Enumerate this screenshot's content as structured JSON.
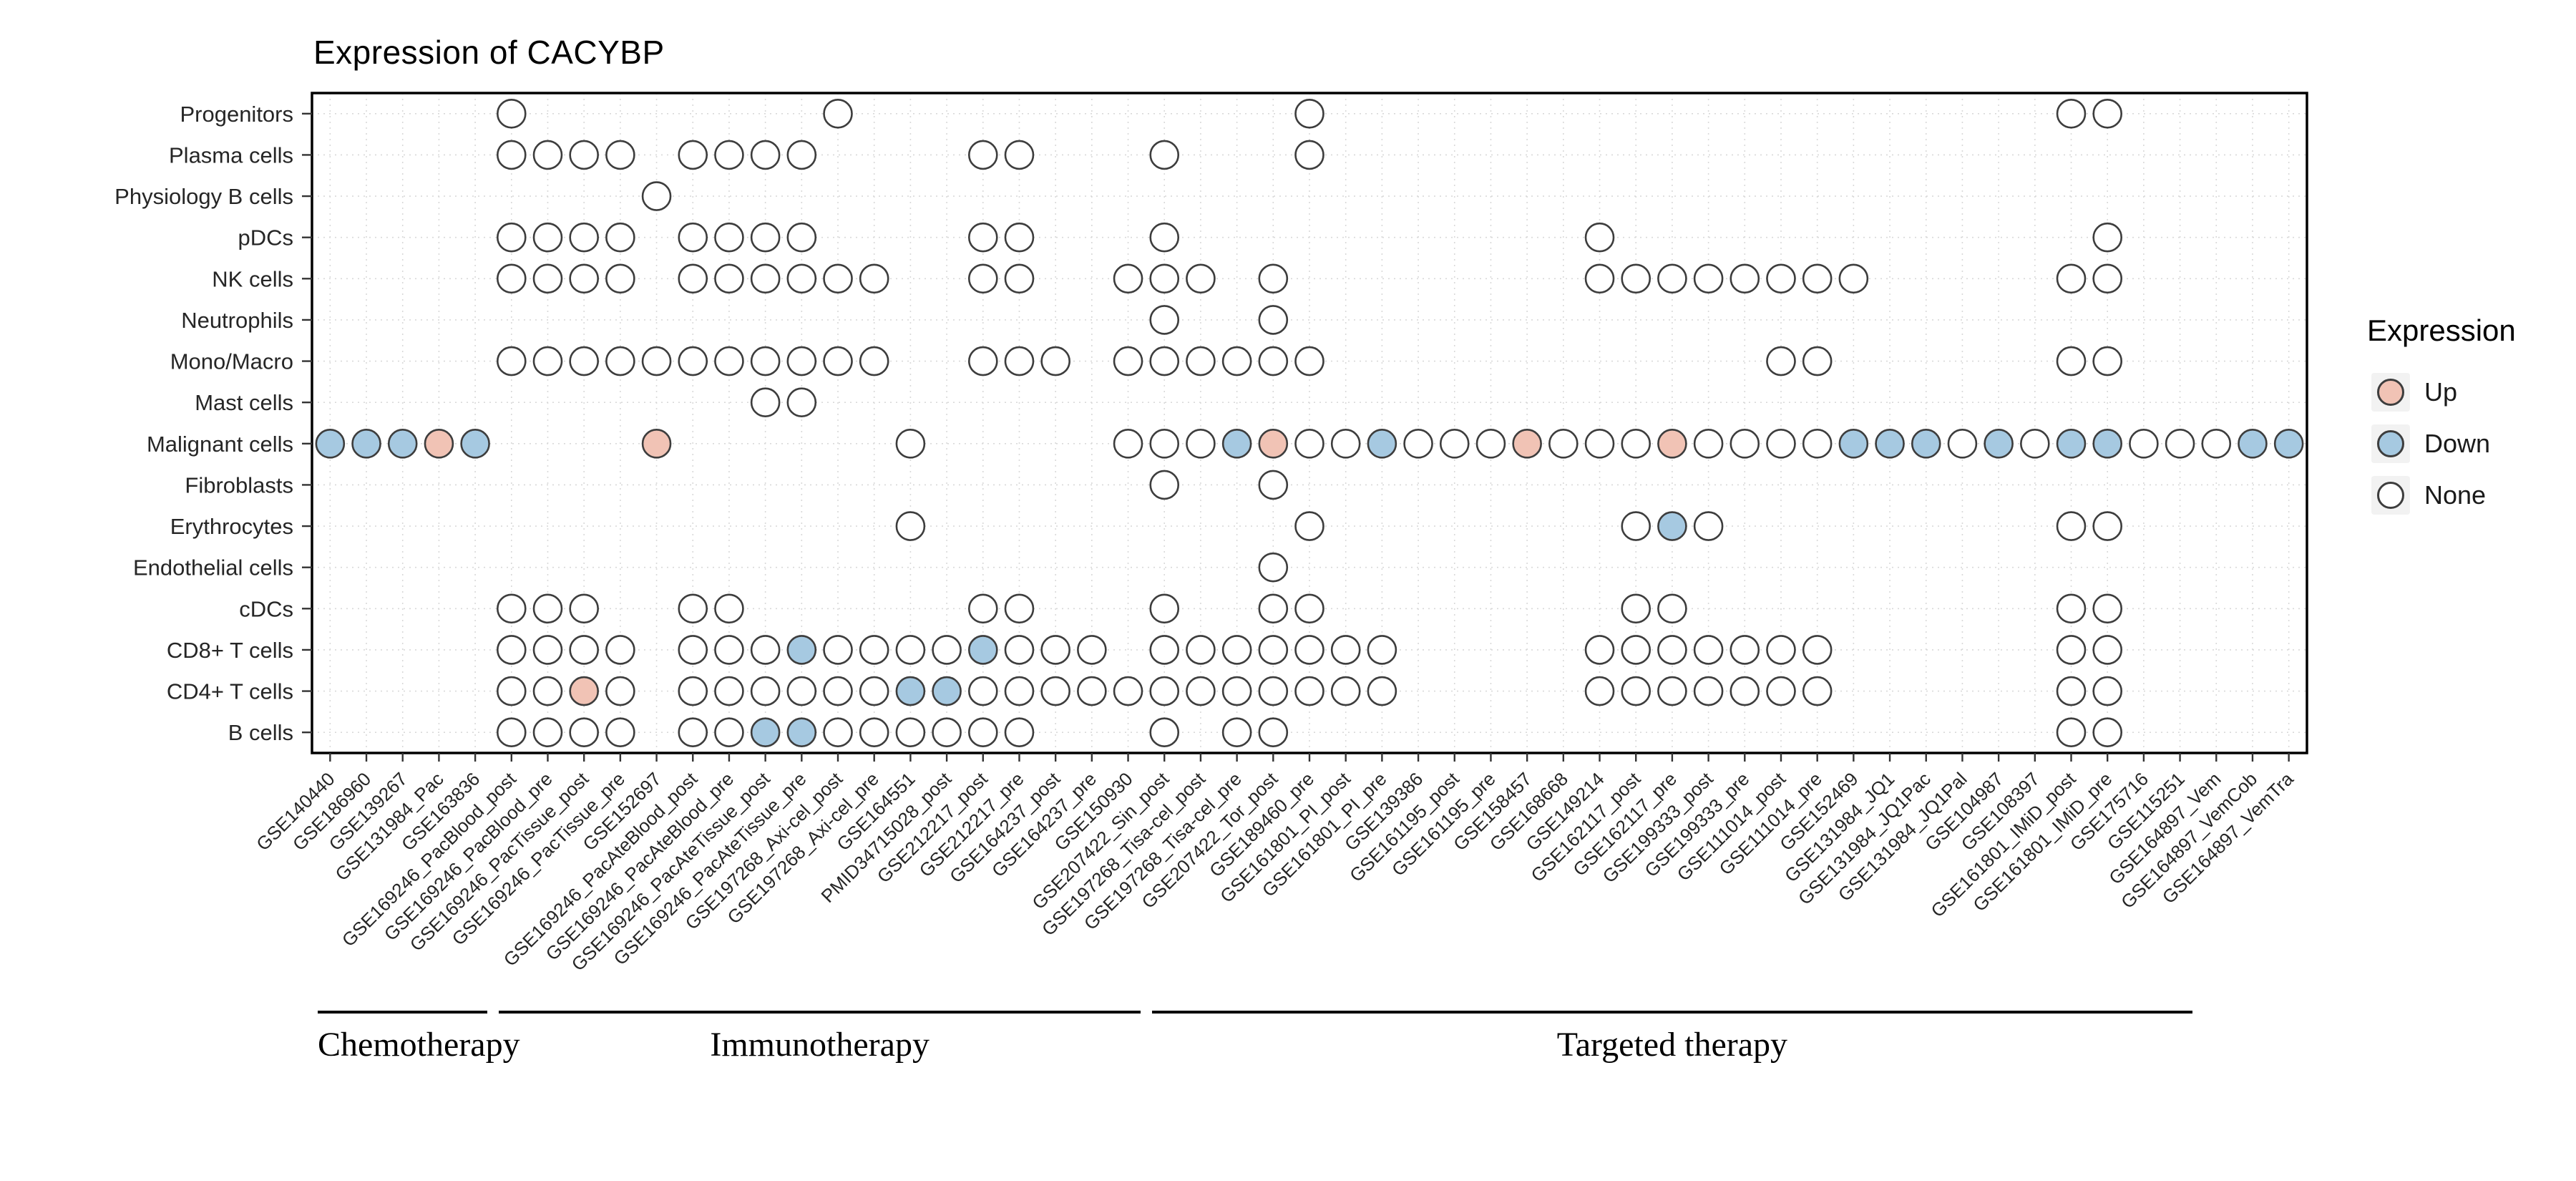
{
  "title": "Expression of CACYBP",
  "legend": {
    "title": "Expression",
    "items": [
      {
        "label": "Up",
        "state": "up"
      },
      {
        "label": "Down",
        "state": "down"
      },
      {
        "label": "None",
        "state": "none"
      }
    ]
  },
  "colors": {
    "up": "#f1c3b5",
    "down": "#a6c9e1",
    "none": "#ffffff",
    "stroke": "#3d3d3d",
    "grid": "#d9d9d9",
    "panel_border": "#000000",
    "axis_text": "#262626"
  },
  "chart_data": {
    "type": "heatmap",
    "title": "Expression of CACYBP",
    "value_levels": [
      "Up",
      "Down",
      "None"
    ],
    "legend_position": "right",
    "rows": [
      "Progenitors",
      "Plasma cells",
      "Physiology B cells",
      "pDCs",
      "NK cells",
      "Neutrophils",
      "Mono/Macro",
      "Mast cells",
      "Malignant cells",
      "Fibroblasts",
      "Erythrocytes",
      "Endothelial cells",
      "cDCs",
      "CD8+ T cells",
      "CD4+ T cells",
      "B cells"
    ],
    "columns": [
      "GSE140440",
      "GSE186960",
      "GSE139267",
      "GSE131984_Pac",
      "GSE163836",
      "GSE169246_PacBlood_post",
      "GSE169246_PacBlood_pre",
      "GSE169246_PacTissue_post",
      "GSE169246_PacTissue_pre",
      "GSE152697",
      "GSE169246_PacAteBlood_post",
      "GSE169246_PacAteBlood_pre",
      "GSE169246_PacAteTissue_post",
      "GSE169246_PacAteTissue_pre",
      "GSE197268_Axi-cel_post",
      "GSE197268_Axi-cel_pre",
      "GSE164551",
      "PMID34715028_post",
      "GSE212217_post",
      "GSE212217_pre",
      "GSE164237_post",
      "GSE164237_pre",
      "GSE150930",
      "GSE207422_Sin_post",
      "GSE197268_Tisa-cel_post",
      "GSE197268_Tisa-cel_pre",
      "GSE207422_Tor_post",
      "GSE189460_pre",
      "GSE161801_PI_post",
      "GSE161801_PI_pre",
      "GSE139386",
      "GSE161195_post",
      "GSE161195_pre",
      "GSE158457",
      "GSE168668",
      "GSE149214",
      "GSE162117_post",
      "GSE162117_pre",
      "GSE199333_post",
      "GSE199333_pre",
      "GSE111014_post",
      "GSE111014_pre",
      "GSE152469",
      "GSE131984_JQ1",
      "GSE131984_JQ1Pac",
      "GSE131984_JQ1Pal",
      "GSE104987",
      "GSE108397",
      "GSE161801_IMiD_post",
      "GSE161801_IMiD_pre",
      "GSE175716",
      "GSE115251",
      "GSE164897_Vem",
      "GSE164897_VemCob",
      "GSE164897_VemTra"
    ],
    "therapy_groups": [
      {
        "label": "Chemotherapy",
        "col_start": 1,
        "col_end": 5
      },
      {
        "label": "Immunotherapy",
        "col_start": 6,
        "col_end": 23
      },
      {
        "label": "Targeted therapy",
        "col_start": 24,
        "col_end": 52
      }
    ],
    "matrix": [
      {
        "row": "Progenitors",
        "none": [
          6,
          15,
          28,
          49,
          50
        ]
      },
      {
        "row": "Plasma cells",
        "none": [
          6,
          7,
          8,
          9,
          11,
          12,
          13,
          14,
          19,
          20,
          24,
          28
        ]
      },
      {
        "row": "Physiology B cells",
        "none": [
          10
        ]
      },
      {
        "row": "pDCs",
        "none": [
          6,
          7,
          8,
          9,
          11,
          12,
          13,
          14,
          19,
          20,
          24,
          36,
          50
        ]
      },
      {
        "row": "NK cells",
        "none": [
          6,
          7,
          8,
          9,
          11,
          12,
          13,
          14,
          15,
          16,
          19,
          20,
          23,
          24,
          25,
          27,
          36,
          37,
          38,
          39,
          40,
          41,
          42,
          43,
          49,
          50
        ]
      },
      {
        "row": "Neutrophils",
        "none": [
          24,
          27
        ]
      },
      {
        "row": "Mono/Macro",
        "none": [
          6,
          7,
          8,
          9,
          10,
          11,
          12,
          13,
          14,
          15,
          16,
          19,
          20,
          21,
          23,
          24,
          25,
          26,
          27,
          28,
          41,
          42,
          49,
          50
        ]
      },
      {
        "row": "Mast cells",
        "none": [
          13,
          14
        ]
      },
      {
        "row": "Malignant cells",
        "up": [
          4,
          10,
          27,
          34,
          38
        ],
        "down": [
          1,
          2,
          3,
          5,
          26,
          30,
          43,
          44,
          45,
          47,
          49,
          50,
          54,
          55
        ],
        "none": [
          17,
          23,
          24,
          25,
          28,
          29,
          31,
          32,
          33,
          35,
          36,
          37,
          39,
          40,
          41,
          42,
          46,
          48,
          51,
          52,
          53
        ]
      },
      {
        "row": "Fibroblasts",
        "none": [
          24,
          27
        ]
      },
      {
        "row": "Erythrocytes",
        "down": [
          38
        ],
        "none": [
          17,
          28,
          37,
          39,
          49,
          50
        ]
      },
      {
        "row": "Endothelial cells",
        "none": [
          27
        ]
      },
      {
        "row": "cDCs",
        "none": [
          6,
          7,
          8,
          11,
          12,
          19,
          20,
          24,
          27,
          28,
          37,
          38,
          49,
          50
        ]
      },
      {
        "row": "CD8+ T cells",
        "down": [
          14,
          19
        ],
        "none": [
          6,
          7,
          8,
          9,
          11,
          12,
          13,
          15,
          16,
          17,
          18,
          20,
          21,
          22,
          24,
          25,
          26,
          27,
          28,
          29,
          30,
          36,
          37,
          38,
          39,
          40,
          41,
          42,
          49,
          50
        ]
      },
      {
        "row": "CD4+ T cells",
        "up": [
          8
        ],
        "down": [
          17,
          18
        ],
        "none": [
          6,
          7,
          9,
          11,
          12,
          13,
          14,
          15,
          16,
          19,
          20,
          21,
          22,
          23,
          24,
          25,
          26,
          27,
          28,
          29,
          30,
          36,
          37,
          38,
          39,
          40,
          41,
          42,
          49,
          50
        ]
      },
      {
        "row": "B cells",
        "down": [
          13,
          14
        ],
        "none": [
          6,
          7,
          8,
          9,
          11,
          12,
          15,
          16,
          17,
          18,
          19,
          20,
          24,
          26,
          27,
          49,
          50
        ]
      }
    ]
  }
}
